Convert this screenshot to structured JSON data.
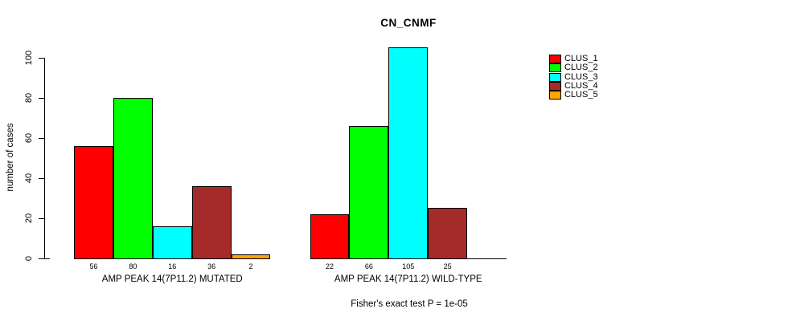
{
  "chart_data": {
    "type": "bar",
    "title": "CN_CNMF",
    "ylabel": "number of cases",
    "xlabel": "",
    "ylim": [
      0,
      100
    ],
    "yticks": [
      0,
      20,
      40,
      60,
      80,
      100
    ],
    "grid": false,
    "legend_position": "right-outside",
    "legend": [
      {
        "name": "CLUS_1",
        "color": "#FF0000"
      },
      {
        "name": "CLUS_2",
        "color": "#00FF00"
      },
      {
        "name": "CLUS_3",
        "color": "#00FFFF"
      },
      {
        "name": "CLUS_4",
        "color": "#A52A2A"
      },
      {
        "name": "CLUS_5",
        "color": "#FFA500"
      }
    ],
    "groups": [
      {
        "label": "AMP PEAK 14(7P11.2) MUTATED",
        "values": [
          56,
          80,
          16,
          36,
          2
        ]
      },
      {
        "label": "AMP PEAK 14(7P11.2) WILD-TYPE",
        "values": [
          22,
          66,
          105,
          25,
          0
        ]
      }
    ],
    "value_labels_visible": true,
    "footnote": "Fisher's exact test P = 1e-05"
  }
}
